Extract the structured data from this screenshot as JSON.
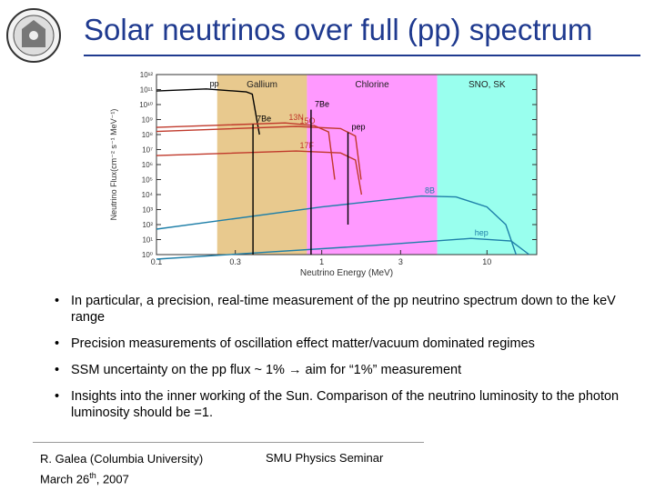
{
  "title": "Solar neutrinos over full (pp) spectrum",
  "logo": {
    "icon": "university-seal-icon"
  },
  "bullets": [
    "In particular, a precision, real-time measurement of the pp neutrino spectrum down to the keV range",
    "Precision measurements of oscillation effect matter/vacuum dominated regimes",
    "SSM uncertainty on the pp flux ~ 1% → aim for “1%” measurement",
    "Insights into the inner working of the Sun. Comparison of the neutrino luminosity to the photon luminosity should be =1."
  ],
  "footer": {
    "author": "R. Galea (Columbia University)",
    "date_prefix": "March 26",
    "date_sup": "th",
    "date_suffix": ", 2007",
    "event": "SMU Physics Seminar"
  },
  "chart_data": {
    "type": "line",
    "xlabel": "Neutrino Energy (MeV)",
    "ylabel": "Neutrino Flux(cm⁻² s⁻¹ MeV⁻¹)",
    "x_scale": "log",
    "y_scale": "log",
    "xlim": [
      0.1,
      20
    ],
    "ylim": [
      1,
      1000000000000.0
    ],
    "x_ticks": [
      "0.1",
      "0.3",
      "1",
      "3",
      "10"
    ],
    "x_tick_values": [
      0.1,
      0.3,
      1,
      3,
      10
    ],
    "y_ticks": [
      "10¹²",
      "10¹¹",
      "10¹⁰",
      "10⁹",
      "10⁸",
      "10⁷",
      "10⁶",
      "10⁵",
      "10⁴",
      "10³",
      "10²",
      "10¹",
      "10⁰"
    ],
    "regions": [
      {
        "label": "Gallium",
        "from": 0.233,
        "to": 0.814,
        "color": "#e8c98e"
      },
      {
        "label": "Chlorine",
        "from": 0.814,
        "to": 5.0,
        "color": "#ff99ff"
      },
      {
        "label": "SNO, SK",
        "from": 5.0,
        "to": 20,
        "color": "#99ffee"
      }
    ],
    "series": [
      {
        "name": "pp",
        "color": "#000000",
        "points": [
          [
            0.1,
            80000000000.0
          ],
          [
            0.2,
            110000000000.0
          ],
          [
            0.35,
            70000000000.0
          ],
          [
            0.38,
            50000000000.0
          ],
          [
            0.42,
            100000000.0
          ]
        ]
      },
      {
        "name": "13N",
        "color": "#c0392b",
        "points": [
          [
            0.1,
            300000000.0
          ],
          [
            0.6,
            600000000.0
          ],
          [
            0.9,
            400000000.0
          ],
          [
            1.1,
            150000000.0
          ],
          [
            1.2,
            100000.0
          ]
        ]
      },
      {
        "name": "15O",
        "color": "#c0392b",
        "points": [
          [
            0.1,
            160000000.0
          ],
          [
            0.7,
            350000000.0
          ],
          [
            1.3,
            250000000.0
          ],
          [
            1.6,
            80000000.0
          ],
          [
            1.73,
            100000.0
          ]
        ]
      },
      {
        "name": "17F",
        "color": "#c0392b",
        "points": [
          [
            0.1,
            4000000.0
          ],
          [
            0.7,
            8000000.0
          ],
          [
            1.3,
            6000000.0
          ],
          [
            1.6,
            2000000.0
          ],
          [
            1.74,
            10000.0
          ]
        ]
      },
      {
        "name": "8B",
        "color": "#1e7fa8",
        "points": [
          [
            0.1,
            50
          ],
          [
            1,
            1500.0
          ],
          [
            4,
            8000.0
          ],
          [
            6.5,
            7000.0
          ],
          [
            10,
            1500.0
          ],
          [
            13,
            100.0
          ],
          [
            15,
            1
          ]
        ]
      },
      {
        "name": "hep",
        "color": "#1e7fa8",
        "points": [
          [
            0.1,
            0.5
          ],
          [
            2,
            4
          ],
          [
            8,
            12
          ],
          [
            14,
            8
          ],
          [
            18,
            1
          ]
        ]
      },
      {
        "name": "pep",
        "color": "#000000",
        "points": [
          [
            1.442,
            100.0
          ],
          [
            1.442,
            140000000.0
          ]
        ]
      },
      {
        "name": "7Be",
        "color": "#000000",
        "points": [
          [
            0.384,
            1
          ],
          [
            0.384,
            500000000.0
          ]
        ]
      },
      {
        "name": "7Be",
        "color": "#000000",
        "points": [
          [
            0.862,
            1
          ],
          [
            0.862,
            4600000000.0
          ]
        ]
      }
    ]
  }
}
